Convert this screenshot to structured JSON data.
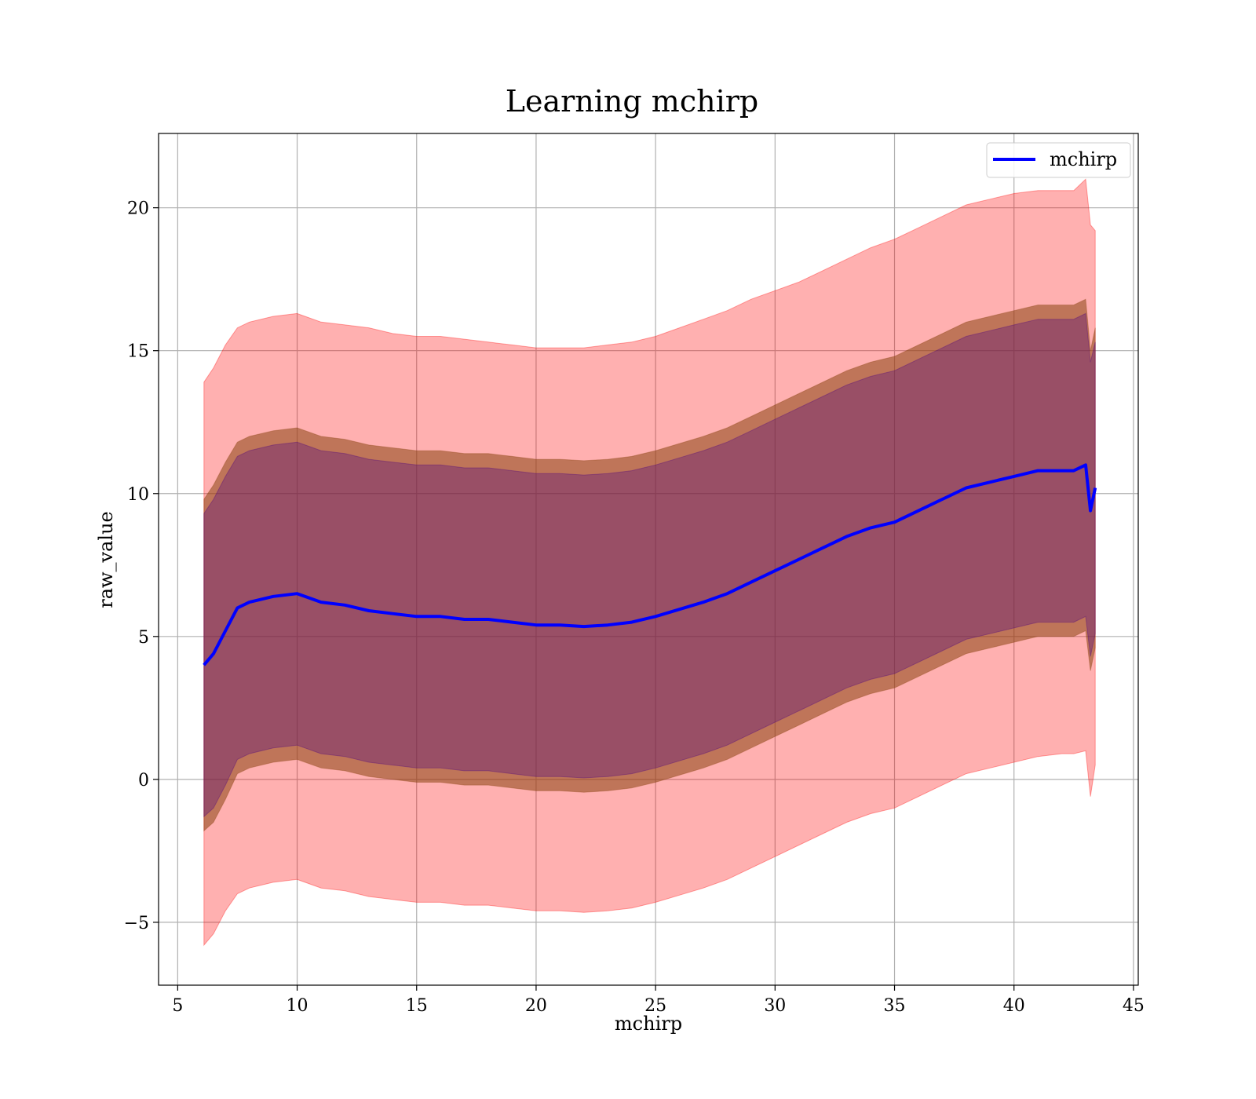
{
  "chart_data": {
    "type": "line",
    "title": "Learning mchirp",
    "xlabel": "mchirp",
    "ylabel": "raw_value",
    "xlim": [
      4.2,
      45.2
    ],
    "ylim": [
      -7.2,
      22.6
    ],
    "xticks": [
      5,
      10,
      15,
      20,
      25,
      30,
      35,
      40,
      45
    ],
    "yticks": [
      -5,
      0,
      5,
      10,
      15,
      20
    ],
    "grid": true,
    "legend": {
      "placement": "top-right",
      "entries": [
        "mchirp"
      ]
    },
    "colors": {
      "line": "#0000ff",
      "outer_band": "#ff0000",
      "inner_band": "#8b4513",
      "core_band": "#4b0082"
    },
    "series": [
      {
        "name": "mchirp",
        "x": [
          6.1,
          6.5,
          7.0,
          7.5,
          8.0,
          9.0,
          10.0,
          11.0,
          12.0,
          13.0,
          14.0,
          15.0,
          16.0,
          17.0,
          18.0,
          19.0,
          20.0,
          21.0,
          22.0,
          23.0,
          24.0,
          25.0,
          26.0,
          27.0,
          28.0,
          29.0,
          30.0,
          31.0,
          32.0,
          33.0,
          34.0,
          35.0,
          36.0,
          37.0,
          38.0,
          39.0,
          40.0,
          41.0,
          42.0,
          42.5,
          43.0,
          43.2,
          43.4
        ],
        "y": [
          4.0,
          4.4,
          5.2,
          6.0,
          6.2,
          6.4,
          6.5,
          6.2,
          6.1,
          5.9,
          5.8,
          5.7,
          5.7,
          5.6,
          5.6,
          5.5,
          5.4,
          5.4,
          5.35,
          5.4,
          5.5,
          5.7,
          5.95,
          6.2,
          6.5,
          6.9,
          7.3,
          7.7,
          8.1,
          8.5,
          8.8,
          9.0,
          9.4,
          9.8,
          10.2,
          10.4,
          10.6,
          10.8,
          10.8,
          10.8,
          11.0,
          9.4,
          10.2
        ]
      }
    ],
    "bands": [
      {
        "name": "outer",
        "upper": [
          13.9,
          14.4,
          15.2,
          15.8,
          16.0,
          16.2,
          16.3,
          16.0,
          15.9,
          15.8,
          15.6,
          15.5,
          15.5,
          15.4,
          15.3,
          15.2,
          15.1,
          15.1,
          15.1,
          15.2,
          15.3,
          15.5,
          15.8,
          16.1,
          16.4,
          16.8,
          17.1,
          17.4,
          17.8,
          18.2,
          18.6,
          18.9,
          19.3,
          19.7,
          20.1,
          20.3,
          20.5,
          20.6,
          20.6,
          20.6,
          21.0,
          19.4,
          19.2
        ],
        "lower": [
          -5.8,
          -5.4,
          -4.6,
          -4.0,
          -3.8,
          -3.6,
          -3.5,
          -3.8,
          -3.9,
          -4.1,
          -4.2,
          -4.3,
          -4.3,
          -4.4,
          -4.4,
          -4.5,
          -4.6,
          -4.6,
          -4.65,
          -4.6,
          -4.5,
          -4.3,
          -4.05,
          -3.8,
          -3.5,
          -3.1,
          -2.7,
          -2.3,
          -1.9,
          -1.5,
          -1.2,
          -1.0,
          -0.6,
          -0.2,
          0.2,
          0.4,
          0.6,
          0.8,
          0.9,
          0.9,
          1.0,
          -0.6,
          0.5
        ]
      },
      {
        "name": "inner",
        "upper": [
          9.8,
          10.3,
          11.1,
          11.8,
          12.0,
          12.2,
          12.3,
          12.0,
          11.9,
          11.7,
          11.6,
          11.5,
          11.5,
          11.4,
          11.4,
          11.3,
          11.2,
          11.2,
          11.15,
          11.2,
          11.3,
          11.5,
          11.75,
          12.0,
          12.3,
          12.7,
          13.1,
          13.5,
          13.9,
          14.3,
          14.6,
          14.8,
          15.2,
          15.6,
          16.0,
          16.2,
          16.4,
          16.6,
          16.6,
          16.6,
          16.8,
          15.0,
          15.8
        ],
        "lower": [
          -1.8,
          -1.5,
          -0.7,
          0.2,
          0.4,
          0.6,
          0.7,
          0.4,
          0.3,
          0.1,
          0.0,
          -0.1,
          -0.1,
          -0.2,
          -0.2,
          -0.3,
          -0.4,
          -0.4,
          -0.45,
          -0.4,
          -0.3,
          -0.1,
          0.15,
          0.4,
          0.7,
          1.1,
          1.5,
          1.9,
          2.3,
          2.7,
          3.0,
          3.2,
          3.6,
          4.0,
          4.4,
          4.6,
          4.8,
          5.0,
          5.0,
          5.0,
          5.2,
          3.8,
          4.6
        ]
      },
      {
        "name": "core",
        "upper": [
          9.3,
          9.8,
          10.6,
          11.3,
          11.5,
          11.7,
          11.8,
          11.5,
          11.4,
          11.2,
          11.1,
          11.0,
          11.0,
          10.9,
          10.9,
          10.8,
          10.7,
          10.7,
          10.65,
          10.7,
          10.8,
          11.0,
          11.25,
          11.5,
          11.8,
          12.2,
          12.6,
          13.0,
          13.4,
          13.8,
          14.1,
          14.3,
          14.7,
          15.1,
          15.5,
          15.7,
          15.9,
          16.1,
          16.1,
          16.1,
          16.3,
          14.6,
          15.3
        ],
        "lower": [
          -1.3,
          -1.0,
          -0.2,
          0.7,
          0.9,
          1.1,
          1.2,
          0.9,
          0.8,
          0.6,
          0.5,
          0.4,
          0.4,
          0.3,
          0.3,
          0.2,
          0.1,
          0.1,
          0.05,
          0.1,
          0.2,
          0.4,
          0.65,
          0.9,
          1.2,
          1.6,
          2.0,
          2.4,
          2.8,
          3.2,
          3.5,
          3.7,
          4.1,
          4.5,
          4.9,
          5.1,
          5.3,
          5.5,
          5.5,
          5.5,
          5.7,
          4.3,
          5.1
        ]
      }
    ]
  }
}
